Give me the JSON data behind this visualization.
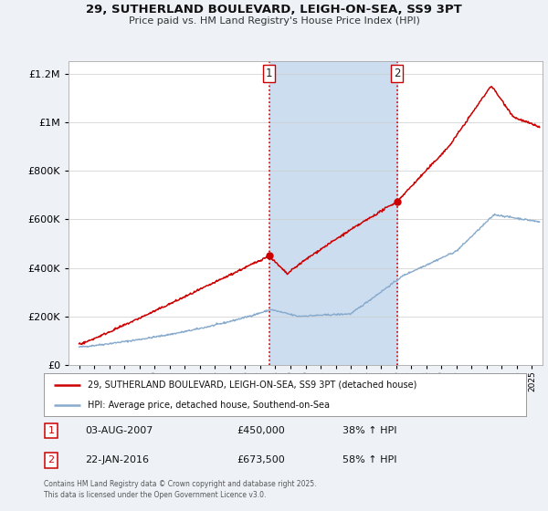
{
  "title_line1": "29, SUTHERLAND BOULEVARD, LEIGH-ON-SEA, SS9 3PT",
  "title_line2": "Price paid vs. HM Land Registry's House Price Index (HPI)",
  "background_color": "#eef2f7",
  "plot_bg_color": "#ffffff",
  "sale1_date_x": 2007.58,
  "sale1_price": 450000,
  "sale2_date_x": 2016.06,
  "sale2_price": 673500,
  "legend_line1": "29, SUTHERLAND BOULEVARD, LEIGH-ON-SEA, SS9 3PT (detached house)",
  "legend_line2": "HPI: Average price, detached house, Southend-on-Sea",
  "footnote": "Contains HM Land Registry data © Crown copyright and database right 2025.\nThis data is licensed under the Open Government Licence v3.0.",
  "red_color": "#cc0000",
  "blue_color": "#88aacc",
  "shade_color": "#ccddf0",
  "ylim_max": 1250000,
  "ylim_min": 0,
  "xlim_min": 1994.3,
  "xlim_max": 2025.7
}
